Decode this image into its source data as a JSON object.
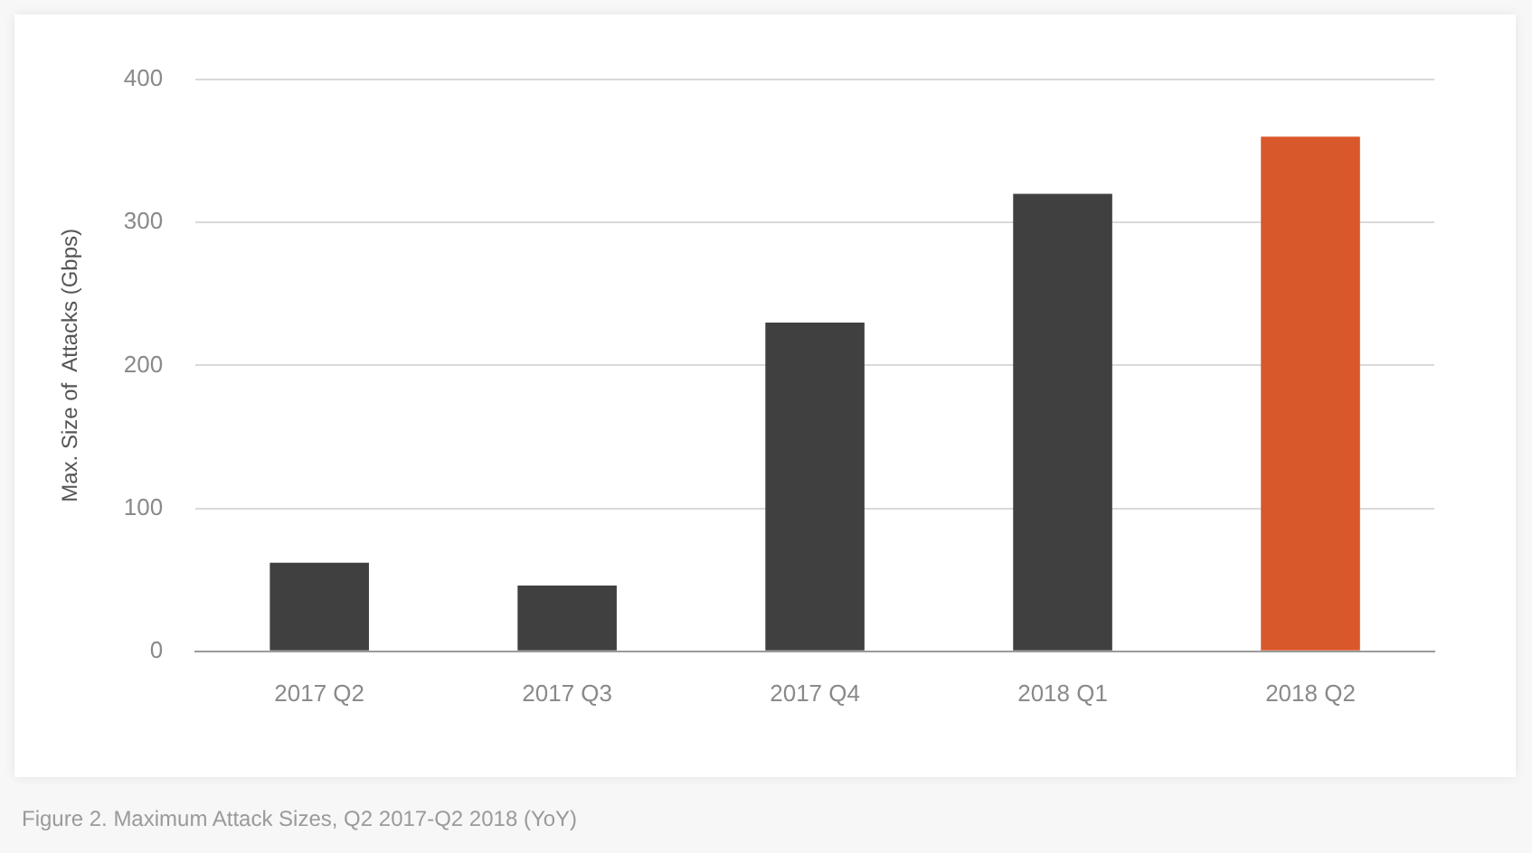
{
  "chart_data": {
    "type": "bar",
    "ylabel": "Max. Size of  Attacks (Gbps)",
    "categories": [
      "2017 Q2",
      "2017 Q3",
      "2017 Q4",
      "2018 Q1",
      "2018 Q2"
    ],
    "values": [
      62,
      46,
      230,
      320,
      360
    ],
    "colors": [
      "#404040",
      "#404040",
      "#404040",
      "#404040",
      "#d9582b"
    ],
    "ylim": [
      0,
      400
    ],
    "yticks": [
      0,
      100,
      200,
      300,
      400
    ],
    "grid": "y",
    "annotations": [
      "Figure 2. Maximum Attack Sizes, Q2 2017-Q2 2018 (YoY)"
    ]
  }
}
